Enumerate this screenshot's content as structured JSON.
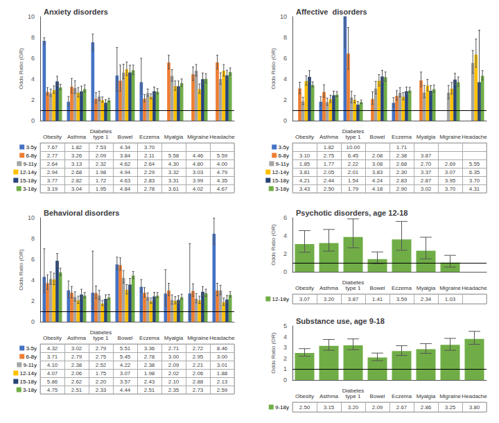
{
  "chart_data": [
    {
      "type": "bar",
      "title": "Anxiety disorders",
      "y_label": "Odds Ratio (OR)",
      "categories": [
        "Obesity",
        "Asthma",
        "Diabetes\ntype 1",
        "Bowel",
        "Eczema",
        "Myalgia",
        "Migraine",
        "Headache"
      ],
      "ylim": [
        0,
        10
      ],
      "yticks": [
        0,
        2,
        4,
        6,
        8,
        10
      ],
      "reference_line": 1,
      "grid": false,
      "tick_labels": "y",
      "data_labels": true,
      "series": [
        {
          "name": "3-5y",
          "color": "#4472C4",
          "values": [
            7.67,
            1.82,
            7.53,
            4.34,
            3.7,
            null,
            null,
            null
          ],
          "value_labels": [
            "7.67",
            "1.82",
            "7.53",
            "4.34",
            "3.70",
            null,
            null,
            null
          ],
          "err_upper": [
            0.3,
            0.5,
            0.8,
            2.7,
            2.3,
            null,
            null,
            null
          ],
          "err_lower": [
            0.3,
            0.4,
            0.8,
            1.5,
            1.1,
            null,
            null,
            null
          ]
        },
        {
          "name": "6-8y",
          "color": "#ED7D31",
          "values": [
            2.77,
            3.26,
            2.09,
            3.84,
            2.11,
            5.58,
            4.46,
            5.59
          ],
          "value_labels": [
            "2.77",
            "3.26",
            "2.09",
            "3.84",
            "2.11",
            "5.58",
            "4.46",
            "5.59"
          ],
          "err_upper": [
            0.4,
            0.8,
            0.6,
            1.5,
            0.4,
            0.7,
            0.7,
            0.7
          ],
          "err_lower": [
            0.3,
            0.6,
            0.4,
            1.0,
            0.3,
            0.6,
            0.6,
            0.6
          ]
        },
        {
          "name": "9-11y",
          "color": "#A5A5A5",
          "values": [
            2.64,
            3.13,
            2.32,
            4.62,
            2.64,
            4.3,
            4.8,
            4.0
          ],
          "value_labels": [
            "2.64",
            "3.13",
            "2.32",
            "4.62",
            "2.64",
            "4.30",
            "4.80",
            "4.00"
          ],
          "err_upper": [
            0.4,
            0.7,
            0.5,
            0.8,
            0.4,
            0.6,
            0.6,
            0.6
          ],
          "err_lower": [
            0.3,
            0.5,
            0.4,
            0.6,
            0.3,
            0.5,
            0.5,
            0.5
          ]
        },
        {
          "name": "12-14y",
          "color": "#FFC000",
          "values": [
            2.94,
            2.68,
            1.98,
            4.94,
            2.29,
            3.32,
            3.03,
            4.79
          ],
          "value_labels": [
            "2.94",
            "2.68",
            "1.98",
            "4.94",
            "2.29",
            "3.32",
            "3.03",
            "4.79"
          ],
          "err_upper": [
            0.4,
            0.5,
            0.3,
            0.7,
            0.3,
            0.5,
            0.5,
            0.6
          ],
          "err_lower": [
            0.3,
            0.4,
            0.2,
            0.6,
            0.2,
            0.4,
            0.4,
            0.5
          ]
        },
        {
          "name": "15-18y",
          "color": "#264478",
          "values": [
            3.77,
            2.82,
            1.72,
            4.63,
            2.83,
            3.31,
            3.99,
            4.35
          ],
          "value_labels": [
            "3.77",
            "2.82",
            "1.72",
            "4.63",
            "2.83",
            "3.31",
            "3.99",
            "4.35"
          ],
          "err_upper": [
            0.5,
            0.5,
            0.3,
            0.7,
            0.4,
            0.5,
            0.6,
            0.5
          ],
          "err_lower": [
            0.4,
            0.4,
            0.2,
            0.6,
            0.3,
            0.4,
            0.5,
            0.4
          ]
        },
        {
          "name": "3-18y",
          "color": "#70AD47",
          "values": [
            3.19,
            3.04,
            1.95,
            4.84,
            2.78,
            3.61,
            4.02,
            4.67
          ],
          "value_labels": [
            "3.19",
            "3.04",
            "1.95",
            "4.84",
            "2.78",
            "3.61",
            "4.02",
            "4.67"
          ],
          "err_upper": [
            0.3,
            0.4,
            0.2,
            0.5,
            0.3,
            0.4,
            0.5,
            0.4
          ],
          "err_lower": [
            0.2,
            0.3,
            0.15,
            0.4,
            0.2,
            0.3,
            0.4,
            0.3
          ]
        }
      ]
    },
    {
      "type": "bar",
      "title": "Affective  disorders",
      "y_label": "Odds Ratio (OR)",
      "categories": [
        "Obesity",
        "Asthma",
        "Diabetes\ntype 1",
        "Bowel",
        "Eczema",
        "Myalgia",
        "Migraine",
        "Headache"
      ],
      "ylim": [
        0,
        10
      ],
      "yticks": [
        0,
        2,
        4,
        6,
        8,
        10
      ],
      "reference_line": 1,
      "grid": false,
      "tick_labels": "y",
      "data_labels": true,
      "series": [
        {
          "name": "3-5y",
          "color": "#4472C4",
          "values": [
            null,
            1.82,
            10.0,
            null,
            1.71,
            null,
            null,
            null
          ],
          "value_labels": [
            null,
            "1.82",
            "10.00",
            null,
            "1.71",
            null,
            null,
            null
          ],
          "err_upper": [
            null,
            0.5,
            0.0,
            null,
            0.5,
            null,
            null,
            null
          ],
          "err_lower": [
            null,
            0.4,
            3.0,
            null,
            0.4,
            null,
            null,
            null
          ]
        },
        {
          "name": "6-8y",
          "color": "#ED7D31",
          "values": [
            3.1,
            2.75,
            6.45,
            2.08,
            2.38,
            3.87,
            null,
            null
          ],
          "value_labels": [
            "3.10",
            "2.75",
            "6.45",
            "2.08",
            "2.38",
            "3.87",
            null,
            null
          ],
          "err_upper": [
            0.6,
            0.7,
            2.5,
            0.7,
            0.5,
            0.8,
            null,
            null
          ],
          "err_lower": [
            0.5,
            0.5,
            1.5,
            0.5,
            0.4,
            0.6,
            null,
            null
          ]
        },
        {
          "name": "9-11y",
          "color": "#A5A5A5",
          "values": [
            1.85,
            1.77,
            2.22,
            3.08,
            2.68,
            2.7,
            2.69,
            5.55
          ],
          "value_labels": [
            "1.85",
            "1.77",
            "2.22",
            "3.08",
            "2.68",
            "2.70",
            "2.69",
            "5.55"
          ],
          "err_upper": [
            0.4,
            0.4,
            0.6,
            0.7,
            0.5,
            0.7,
            0.7,
            1.2
          ],
          "err_lower": [
            0.3,
            0.3,
            0.5,
            0.5,
            0.4,
            0.5,
            0.6,
            1.0
          ]
        },
        {
          "name": "12-14y",
          "color": "#FFC000",
          "values": [
            3.81,
            2.05,
            2.01,
            3.83,
            2.3,
            3.37,
            3.07,
            6.35
          ],
          "value_labels": [
            "3.81",
            "2.05",
            "2.01",
            "3.83",
            "2.30",
            "3.37",
            "3.07",
            "6.35"
          ],
          "err_upper": [
            0.5,
            0.4,
            0.4,
            0.6,
            0.4,
            0.6,
            0.6,
            1.5
          ],
          "err_lower": [
            0.4,
            0.3,
            0.3,
            0.5,
            0.3,
            0.5,
            0.5,
            1.2
          ]
        },
        {
          "name": "15-18y",
          "color": "#264478",
          "values": [
            4.21,
            2.44,
            1.54,
            4.24,
            2.83,
            2.87,
            3.95,
            3.7
          ],
          "value_labels": [
            "4.21",
            "2.44",
            "1.54",
            "4.24",
            "2.83",
            "2.87",
            "3.95",
            "3.70"
          ],
          "err_upper": [
            0.6,
            0.4,
            0.3,
            0.6,
            0.4,
            0.5,
            0.6,
            5.0
          ],
          "err_lower": [
            0.5,
            0.3,
            0.2,
            0.5,
            0.3,
            0.4,
            0.5,
            3.5
          ]
        },
        {
          "name": "3-18y",
          "color": "#70AD47",
          "values": [
            3.43,
            2.5,
            1.79,
            4.18,
            2.9,
            3.02,
            3.7,
            4.31
          ],
          "value_labels": [
            "3.43",
            "2.50",
            "1.79",
            "4.18",
            "2.90",
            "3.02",
            "3.70",
            "4.31"
          ],
          "err_upper": [
            0.3,
            0.3,
            0.2,
            0.5,
            0.3,
            0.4,
            0.5,
            0.5
          ],
          "err_lower": [
            0.2,
            0.2,
            0.15,
            0.4,
            0.2,
            0.3,
            0.4,
            0.4
          ]
        }
      ]
    },
    {
      "type": "bar",
      "title": "Behavioral disorders",
      "y_label": "Odds Ratio (OR)",
      "categories": [
        "Obesity",
        "Asthma",
        "Diabetes\ntype 1",
        "Bowel",
        "Eczema",
        "Myalgia",
        "Migraine",
        "Headache"
      ],
      "ylim": [
        0,
        10
      ],
      "yticks": [
        0,
        2,
        4,
        6,
        8,
        10
      ],
      "reference_line": 1,
      "grid": false,
      "tick_labels": "y",
      "data_labels": true,
      "series": [
        {
          "name": "3-5y",
          "color": "#4472C4",
          "values": [
            4.32,
            3.02,
            2.79,
            5.51,
            3.36,
            2.71,
            2.72,
            8.46
          ],
          "value_labels": [
            "4.32",
            "3.02",
            "2.79",
            "5.51",
            "3.36",
            "2.71",
            "2.72",
            "8.46"
          ],
          "err_upper": [
            2.7,
            0.9,
            4.0,
            0.7,
            0.7,
            2.3,
            4.8,
            1.5
          ],
          "err_lower": [
            1.5,
            0.7,
            1.5,
            0.5,
            0.5,
            1.2,
            2.5,
            1.0
          ]
        },
        {
          "name": "6-8y",
          "color": "#ED7D31",
          "values": [
            3.71,
            2.79,
            2.75,
            5.45,
            2.78,
            3.0,
            2.95,
            3.0
          ],
          "value_labels": [
            "3.71",
            "2.79",
            "2.75",
            "5.45",
            "2.78",
            "3.00",
            "2.95",
            "3.00"
          ],
          "err_upper": [
            0.8,
            0.6,
            0.7,
            0.7,
            0.5,
            0.7,
            0.7,
            0.7
          ],
          "err_lower": [
            0.6,
            0.5,
            0.5,
            0.5,
            0.4,
            0.5,
            0.5,
            0.5
          ]
        },
        {
          "name": "9-11y",
          "color": "#A5A5A5",
          "values": [
            4.1,
            2.38,
            2.52,
            4.22,
            2.38,
            2.09,
            2.21,
            3.01
          ],
          "value_labels": [
            "4.10",
            "2.38",
            "2.52",
            "4.22",
            "2.38",
            "2.09",
            "2.21",
            "3.01"
          ],
          "err_upper": [
            0.7,
            0.5,
            0.5,
            0.7,
            0.4,
            0.5,
            0.5,
            0.5
          ],
          "err_lower": [
            0.5,
            0.4,
            0.4,
            0.5,
            0.3,
            0.4,
            0.4,
            0.4
          ]
        },
        {
          "name": "12-14y",
          "color": "#FFC000",
          "values": [
            4.07,
            2.06,
            1.75,
            3.07,
            1.98,
            2.02,
            2.06,
            1.88
          ],
          "value_labels": [
            "4.07",
            "2.06",
            "1.75",
            "3.07",
            "1.98",
            "2.02",
            "2.06",
            "1.88"
          ],
          "err_upper": [
            0.6,
            0.4,
            0.3,
            0.5,
            0.3,
            0.4,
            0.4,
            0.4
          ],
          "err_lower": [
            0.5,
            0.3,
            0.2,
            0.4,
            0.2,
            0.3,
            0.3,
            0.3
          ]
        },
        {
          "name": "15-18y",
          "color": "#264478",
          "values": [
            5.86,
            2.62,
            2.2,
            3.57,
            2.43,
            2.1,
            2.88,
            2.13
          ],
          "value_labels": [
            "5.86",
            "2.62",
            "2.20",
            "3.57",
            "2.43",
            "2.10",
            "2.88",
            "2.13"
          ],
          "err_upper": [
            0.7,
            0.5,
            0.4,
            0.6,
            0.4,
            0.4,
            0.5,
            0.4
          ],
          "err_lower": [
            0.6,
            0.4,
            0.3,
            0.5,
            0.3,
            0.3,
            0.4,
            0.3
          ]
        },
        {
          "name": "3-18y",
          "color": "#70AD47",
          "values": [
            4.75,
            2.51,
            2.33,
            4.44,
            2.51,
            2.35,
            2.73,
            2.59
          ],
          "value_labels": [
            "4.75",
            "2.51",
            "2.33",
            "4.44",
            "2.51",
            "2.35",
            "2.73",
            "2.59"
          ],
          "err_upper": [
            0.4,
            0.3,
            0.3,
            0.4,
            0.3,
            0.3,
            0.4,
            0.3
          ],
          "err_lower": [
            0.3,
            0.2,
            0.2,
            0.3,
            0.2,
            0.2,
            0.3,
            0.2
          ]
        }
      ]
    },
    {
      "type": "bar",
      "title": "Psychotic disorders, age 12-18",
      "y_label": "Odds Ratio (OR)",
      "categories": [
        "Obesity",
        "Asthma",
        "Diabetes\ntype 1",
        "Bowel",
        "Eczema",
        "Myalgia",
        "Migraine",
        "Headache"
      ],
      "ylim": [
        0,
        6
      ],
      "yticks": [
        0,
        2,
        4,
        6
      ],
      "reference_line": 1,
      "grid": false,
      "tick_labels": "y",
      "data_labels": true,
      "series": [
        {
          "name": "12-18y",
          "color": "#70AD47",
          "values": [
            3.07,
            3.2,
            3.87,
            1.41,
            3.59,
            2.34,
            1.03,
            null
          ],
          "value_labels": [
            "3.07",
            "3.20",
            "3.87",
            "1.41",
            "3.59",
            "2.34",
            "1.03",
            null
          ],
          "err_upper": [
            1.5,
            1.5,
            2.0,
            0.8,
            2.0,
            1.5,
            0.8,
            null
          ],
          "err_lower": [
            0.9,
            0.9,
            1.2,
            0.5,
            1.2,
            0.9,
            0.5,
            null
          ]
        }
      ]
    },
    {
      "type": "bar",
      "title": "Substance use, age 9-18",
      "y_label": "Odds Ratio (OR)",
      "categories": [
        "Obesity",
        "Asthma",
        "Diabetes\ntype 1",
        "Bowel",
        "Eczema",
        "Myalgia",
        "Migraine",
        "Headache"
      ],
      "ylim": [
        0,
        5
      ],
      "yticks": [
        0,
        1,
        2,
        3,
        4,
        5
      ],
      "reference_line": 1,
      "grid": false,
      "tick_labels": "y",
      "data_labels": true,
      "series": [
        {
          "name": "9-18y",
          "color": "#70AD47",
          "values": [
            2.5,
            3.15,
            3.2,
            2.09,
            2.67,
            2.86,
            3.25,
            3.8
          ],
          "value_labels": [
            "2.50",
            "3.15",
            "3.20",
            "2.09",
            "2.67",
            "2.86",
            "3.25",
            "3.80"
          ],
          "err_upper": [
            0.4,
            0.6,
            0.6,
            0.4,
            0.5,
            0.5,
            0.6,
            0.7
          ],
          "err_lower": [
            0.3,
            0.4,
            0.4,
            0.3,
            0.4,
            0.4,
            0.5,
            0.5
          ]
        }
      ]
    }
  ]
}
